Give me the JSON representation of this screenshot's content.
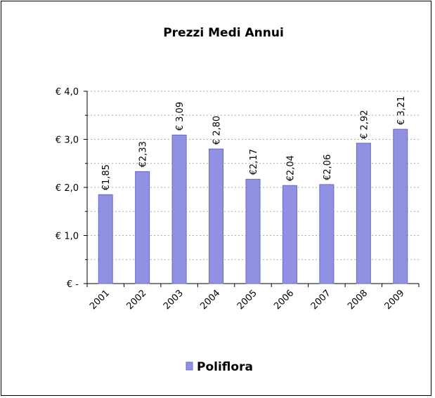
{
  "chart_data": {
    "type": "bar",
    "title": "Prezzi Medi Annui",
    "categories": [
      "2001",
      "2002",
      "2003",
      "2004",
      "2005",
      "2006",
      "2007",
      "2008",
      "2009"
    ],
    "series": [
      {
        "name": "Poliflora",
        "color": "#9191e3",
        "values": [
          1.85,
          2.33,
          3.09,
          2.8,
          2.17,
          2.04,
          2.06,
          2.92,
          3.21
        ],
        "value_labels": [
          "€1,85",
          "€2,33",
          "€ 3,09",
          "€ 2,80",
          "€2,17",
          "€2,04",
          "€2,06",
          "€ 2,92",
          "€ 3,21"
        ]
      }
    ],
    "ylim": [
      0,
      4
    ],
    "yticks": [
      {
        "value": 0,
        "label": "€ -"
      },
      {
        "value": 1,
        "label": "€ 1,0"
      },
      {
        "value": 2,
        "label": "€ 2,0"
      },
      {
        "value": 3,
        "label": "€ 3,0"
      },
      {
        "value": 4,
        "label": "€ 4,0"
      }
    ],
    "grid": true,
    "legend": "bottom"
  }
}
